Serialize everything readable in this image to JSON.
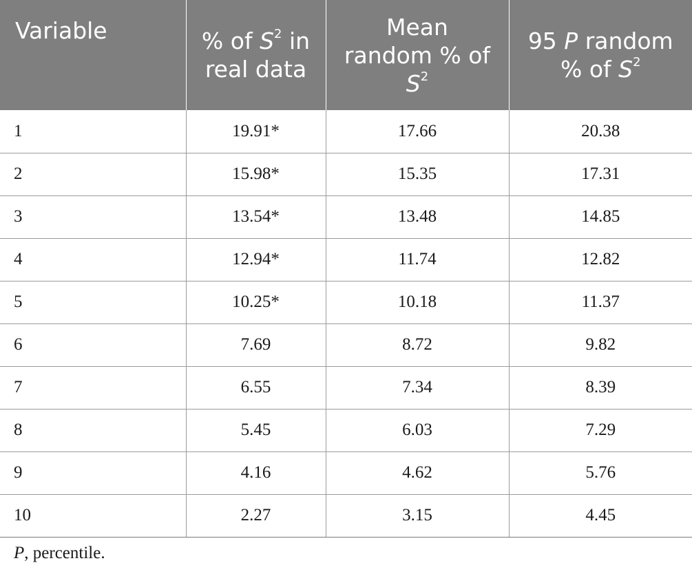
{
  "table": {
    "headers": {
      "col1": "Variable",
      "col2": {
        "line1_a": "% of ",
        "line1_var": "S",
        "line1_sup": "2",
        "line1_b": " in",
        "line2": "real data"
      },
      "col3": {
        "line1": "Mean",
        "line2": "random % of",
        "line3_var": "S",
        "line3_sup": "2"
      },
      "col4": {
        "line1_a": "95 ",
        "line1_var": "P",
        "line1_b": " random",
        "line2_a": "% of ",
        "line2_var": "S",
        "line2_sup": "2"
      }
    },
    "rows": [
      {
        "variable": "1",
        "real": "19.91*",
        "mean_random": "17.66",
        "p95_random": "20.38"
      },
      {
        "variable": "2",
        "real": "15.98*",
        "mean_random": "15.35",
        "p95_random": "17.31"
      },
      {
        "variable": "3",
        "real": "13.54*",
        "mean_random": "13.48",
        "p95_random": "14.85"
      },
      {
        "variable": "4",
        "real": "12.94*",
        "mean_random": "11.74",
        "p95_random": "12.82"
      },
      {
        "variable": "5",
        "real": "10.25*",
        "mean_random": "10.18",
        "p95_random": "11.37"
      },
      {
        "variable": "6",
        "real": "7.69",
        "mean_random": "8.72",
        "p95_random": "9.82"
      },
      {
        "variable": "7",
        "real": "6.55",
        "mean_random": "7.34",
        "p95_random": "8.39"
      },
      {
        "variable": "8",
        "real": "5.45",
        "mean_random": "6.03",
        "p95_random": "7.29"
      },
      {
        "variable": "9",
        "real": "4.16",
        "mean_random": "4.62",
        "p95_random": "5.76"
      },
      {
        "variable": "10",
        "real": "2.27",
        "mean_random": "3.15",
        "p95_random": "4.45"
      }
    ]
  },
  "footnote": {
    "symbol": "P",
    "text": ", percentile."
  },
  "colors": {
    "header_bg": "#7f7f7f",
    "header_text": "#ffffff",
    "body_text": "#1a1a1a",
    "rule": "#9a9a9a"
  }
}
